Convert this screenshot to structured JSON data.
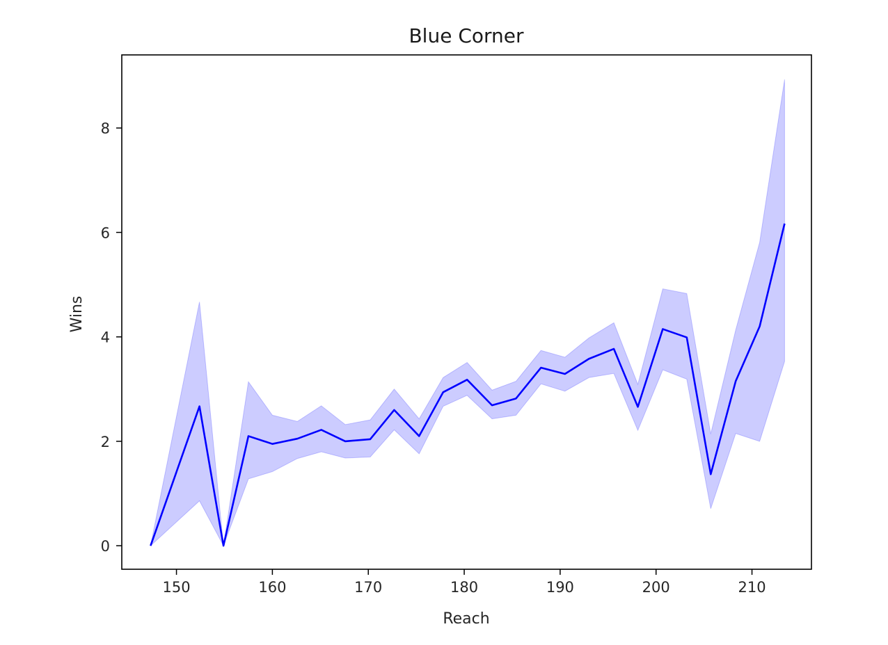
{
  "chart_data": {
    "type": "line",
    "title": "Blue Corner",
    "xlabel": "Reach",
    "ylabel": "Wins",
    "xlim": [
      144.3,
      216.2
    ],
    "ylim": [
      -0.45,
      9.4
    ],
    "xticks": [
      150,
      160,
      170,
      180,
      190,
      200,
      210
    ],
    "yticks": [
      0,
      2,
      4,
      6,
      8
    ],
    "grid": false,
    "legend": "none",
    "colors": {
      "line": "#0000ff",
      "band": "#0000ff"
    },
    "band_opacity": 0.2,
    "series": [
      {
        "x": [
          147.3,
          152.4,
          154.9,
          157.5,
          160.0,
          162.6,
          165.1,
          167.6,
          170.2,
          172.7,
          175.3,
          177.8,
          180.3,
          182.9,
          185.4,
          188.0,
          190.5,
          193.0,
          195.6,
          198.1,
          200.7,
          203.2,
          205.7,
          208.3,
          210.8,
          213.4
        ],
        "y": [
          0.0,
          2.67,
          0.0,
          2.1,
          1.95,
          2.05,
          2.22,
          2.0,
          2.04,
          2.6,
          2.1,
          2.94,
          3.18,
          2.69,
          2.82,
          3.41,
          3.29,
          3.58,
          3.77,
          2.66,
          4.15,
          3.99,
          1.37,
          3.15,
          4.2,
          6.17
        ],
        "lower": [
          0.0,
          0.86,
          0.0,
          1.28,
          1.42,
          1.67,
          1.8,
          1.68,
          1.7,
          2.22,
          1.76,
          2.67,
          2.88,
          2.43,
          2.5,
          3.1,
          2.96,
          3.22,
          3.3,
          2.21,
          3.37,
          3.19,
          0.71,
          2.15,
          2.0,
          3.53
        ],
        "upper": [
          0.0,
          4.67,
          0.0,
          3.14,
          2.5,
          2.38,
          2.68,
          2.32,
          2.41,
          3.0,
          2.43,
          3.22,
          3.51,
          2.98,
          3.15,
          3.74,
          3.61,
          3.98,
          4.27,
          3.09,
          4.92,
          4.83,
          2.14,
          4.13,
          5.81,
          8.93
        ]
      }
    ]
  }
}
